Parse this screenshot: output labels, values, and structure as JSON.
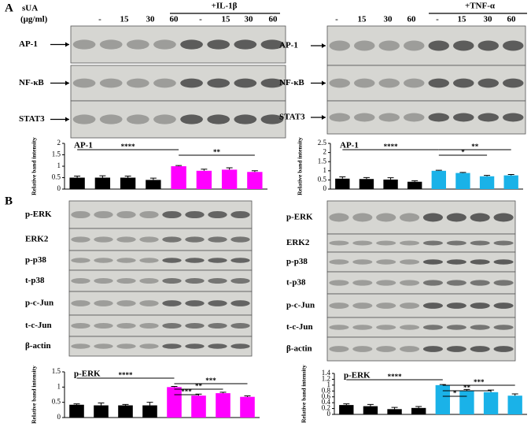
{
  "panel_labels": [
    "A",
    "B"
  ],
  "left": {
    "treatment_label": "sUA",
    "unit": "(μg/ml)",
    "doses": [
      "-",
      "15",
      "30",
      "60",
      "-",
      "15",
      "30",
      "60"
    ],
    "stimulus": "+IL-1β",
    "blots_a": [
      "AP-1",
      "NF-κB",
      "STAT3"
    ],
    "blots_b": [
      "p-ERK",
      "ERK2",
      "p-p38",
      "t-p38",
      "p-c-Jun",
      "t-c-Jun",
      "β-actin"
    ]
  },
  "right": {
    "doses": [
      "-",
      "15",
      "30",
      "60",
      "-",
      "15",
      "30",
      "60"
    ],
    "stimulus": "+TNF-α",
    "blots_a": [
      "AP-1",
      "NF-κB",
      "STAT3"
    ],
    "blots_b": [
      "p-ERK",
      "ERK2",
      "p-p38",
      "t-p38",
      "p-c-Jun",
      "t-c-Jun",
      "β-actin"
    ]
  },
  "chart_data": [
    {
      "type": "bar",
      "title": "AP-1",
      "y_label": "Relative band intensity",
      "categories": [
        null,
        null,
        null,
        null,
        null,
        null,
        null,
        null
      ],
      "values": [
        0.5,
        0.5,
        0.5,
        0.4,
        1.0,
        0.8,
        0.85,
        0.75
      ],
      "errors": [
        0.07,
        0.08,
        0.07,
        0.08,
        0.03,
        0.07,
        0.08,
        0.05
      ],
      "colors": [
        "#000000",
        "#000000",
        "#000000",
        "#000000",
        "#ff00ff",
        "#ff00ff",
        "#ff00ff",
        "#ff00ff"
      ],
      "ylim": [
        0,
        2
      ],
      "yticks": [
        0,
        0.5,
        1,
        1.5,
        2
      ],
      "annotations": [
        "****",
        "**"
      ]
    },
    {
      "type": "bar",
      "title": "AP-1",
      "y_label": "Relative band intensity",
      "categories": [
        null,
        null,
        null,
        null,
        null,
        null,
        null,
        null
      ],
      "values": [
        0.57,
        0.55,
        0.52,
        0.4,
        1.0,
        0.88,
        0.7,
        0.75
      ],
      "errors": [
        0.1,
        0.08,
        0.1,
        0.06,
        0.03,
        0.03,
        0.05,
        0.05
      ],
      "colors": [
        "#000000",
        "#000000",
        "#000000",
        "#000000",
        "#1ab2e8",
        "#1ab2e8",
        "#1ab2e8",
        "#1ab2e8"
      ],
      "ylim": [
        0,
        2.5
      ],
      "yticks": [
        0,
        0.5,
        1,
        1.5,
        2,
        2.5
      ],
      "annotations": [
        "****",
        "**",
        "*"
      ]
    },
    {
      "type": "bar",
      "title": "p-ERK",
      "y_label": "Relative band intensity",
      "categories": [
        null,
        null,
        null,
        null,
        null,
        null,
        null,
        null
      ],
      "values": [
        0.42,
        0.4,
        0.4,
        0.4,
        1.0,
        0.72,
        0.8,
        0.68
      ],
      "errors": [
        0.03,
        0.08,
        0.03,
        0.1,
        0.02,
        0.05,
        0.03,
        0.03
      ],
      "colors": [
        "#000000",
        "#000000",
        "#000000",
        "#000000",
        "#ff00ff",
        "#ff00ff",
        "#ff00ff",
        "#ff00ff"
      ],
      "ylim": [
        0,
        1.5
      ],
      "yticks": [
        0,
        0.5,
        1,
        1.5
      ],
      "annotations": [
        "****",
        "***",
        "**",
        "***"
      ]
    },
    {
      "type": "bar",
      "title": "p-ERK",
      "y_label": "Relative band intensity",
      "categories": [
        null,
        null,
        null,
        null,
        null,
        null,
        null,
        null
      ],
      "values": [
        0.32,
        0.28,
        0.18,
        0.22,
        1.0,
        0.82,
        0.76,
        0.64
      ],
      "errors": [
        0.04,
        0.06,
        0.06,
        0.05,
        0.02,
        0.03,
        0.07,
        0.06
      ],
      "colors": [
        "#000000",
        "#000000",
        "#000000",
        "#000000",
        "#1ab2e8",
        "#1ab2e8",
        "#1ab2e8",
        "#1ab2e8"
      ],
      "ylim": [
        0,
        1.4
      ],
      "yticks": [
        0,
        0.2,
        0.4,
        0.6,
        0.8,
        1,
        1.2,
        1.4
      ],
      "annotations": [
        "****",
        "*",
        "**",
        "***"
      ]
    }
  ]
}
